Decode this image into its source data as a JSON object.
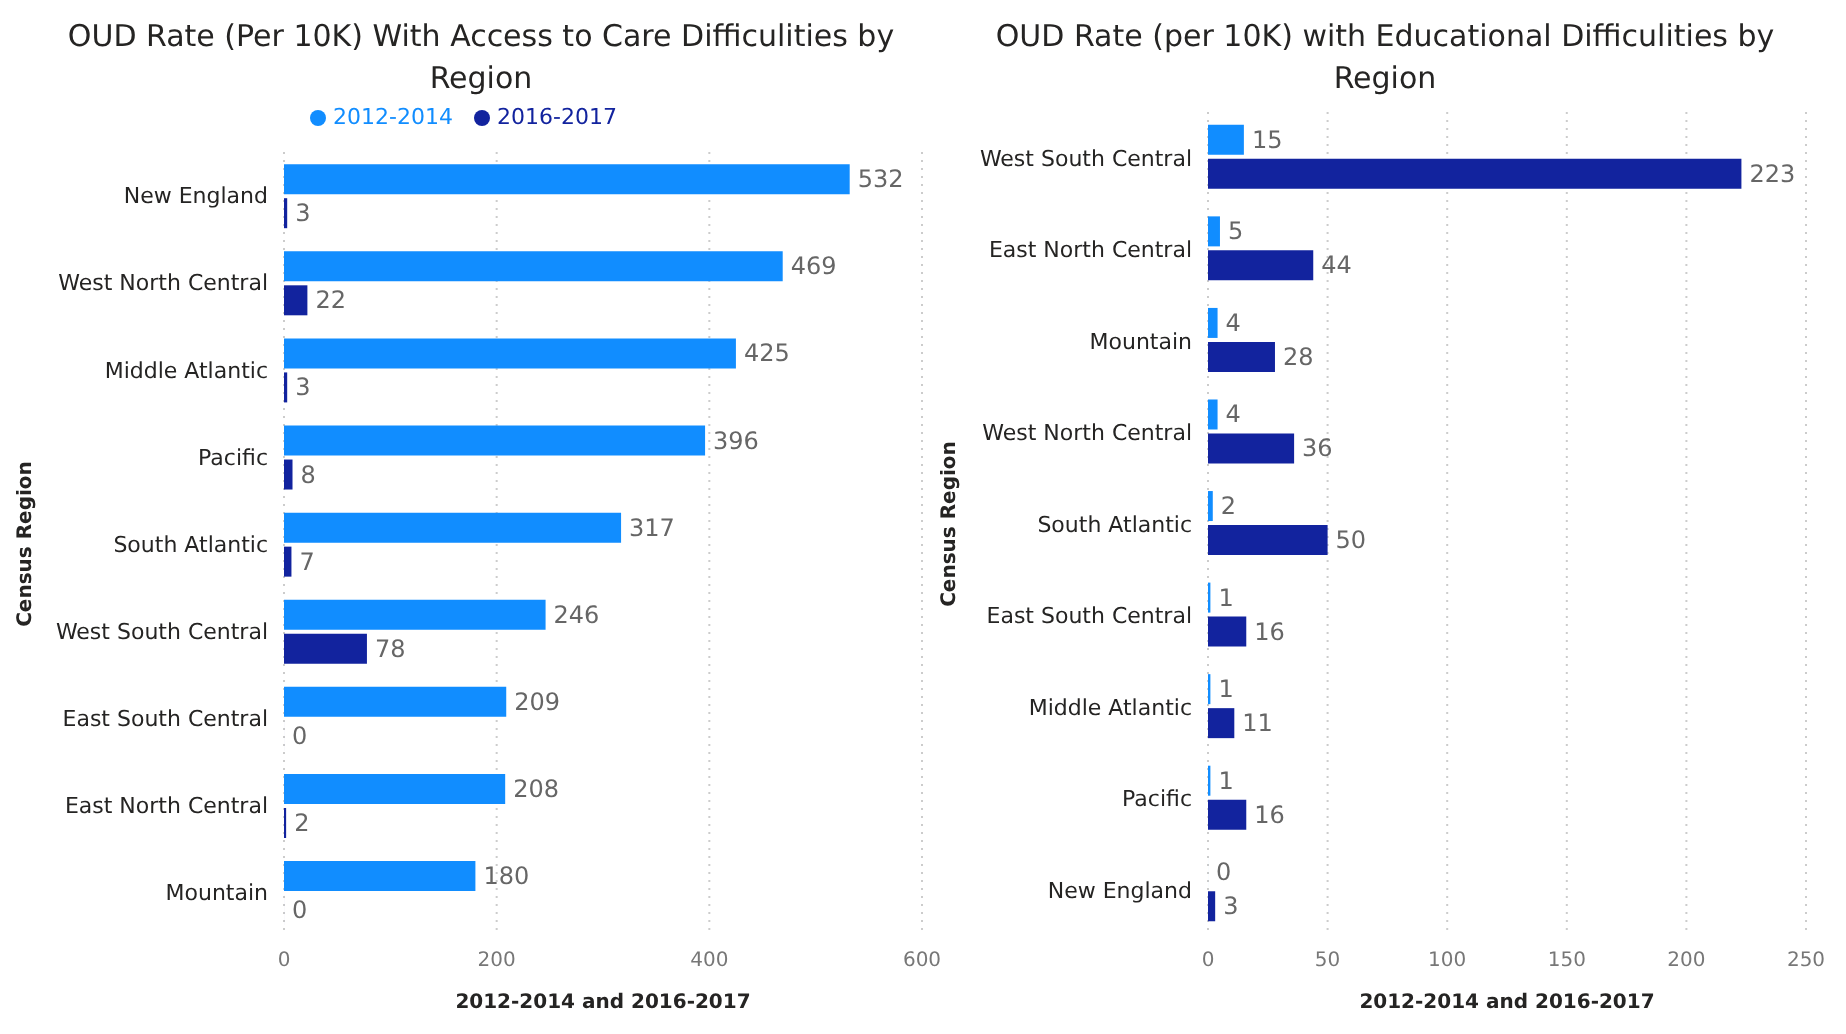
{
  "chart_data": [
    {
      "type": "bar",
      "orientation": "horizontal",
      "title": "OUD Rate (Per 10K) With Access to Care Difficulities by Region",
      "xlabel": "2012-2014 and 2016-2017",
      "ylabel": "Census Region",
      "categories": [
        "New England",
        "West North Central",
        "Middle Atlantic",
        "Pacific",
        "South Atlantic",
        "West South Central",
        "East South Central",
        "East North Central",
        "Mountain"
      ],
      "series": [
        {
          "name": "2012-2014",
          "color": "#118dff",
          "values": [
            532,
            469,
            425,
            396,
            317,
            246,
            209,
            208,
            180
          ]
        },
        {
          "name": "2016-2017",
          "color": "#12239e",
          "values": [
            3,
            22,
            3,
            8,
            7,
            78,
            0,
            2,
            0
          ]
        }
      ],
      "xlim": [
        0,
        600
      ],
      "xticks": [
        0,
        200,
        400,
        600
      ],
      "grid": "x",
      "legend": "top",
      "data_labels": true
    },
    {
      "type": "bar",
      "orientation": "horizontal",
      "title": "OUD Rate (per 10K) with Educational Difficulities by Region",
      "xlabel": "2012-2014 and 2016-2017",
      "ylabel": "Census Region",
      "categories": [
        "West South Central",
        "East North Central",
        "Mountain",
        "West North Central",
        "South Atlantic",
        "East South Central",
        "Middle Atlantic",
        "Pacific",
        "New England"
      ],
      "series": [
        {
          "color": "#118dff",
          "values": [
            15,
            5,
            4,
            4,
            2,
            1,
            1,
            1,
            0
          ]
        },
        {
          "color": "#12239e",
          "values": [
            223,
            44,
            28,
            36,
            50,
            16,
            11,
            16,
            3
          ]
        }
      ],
      "xlim": [
        0,
        250
      ],
      "xticks": [
        0,
        50,
        100,
        150,
        200,
        250
      ],
      "grid": "x",
      "data_labels": true
    }
  ]
}
